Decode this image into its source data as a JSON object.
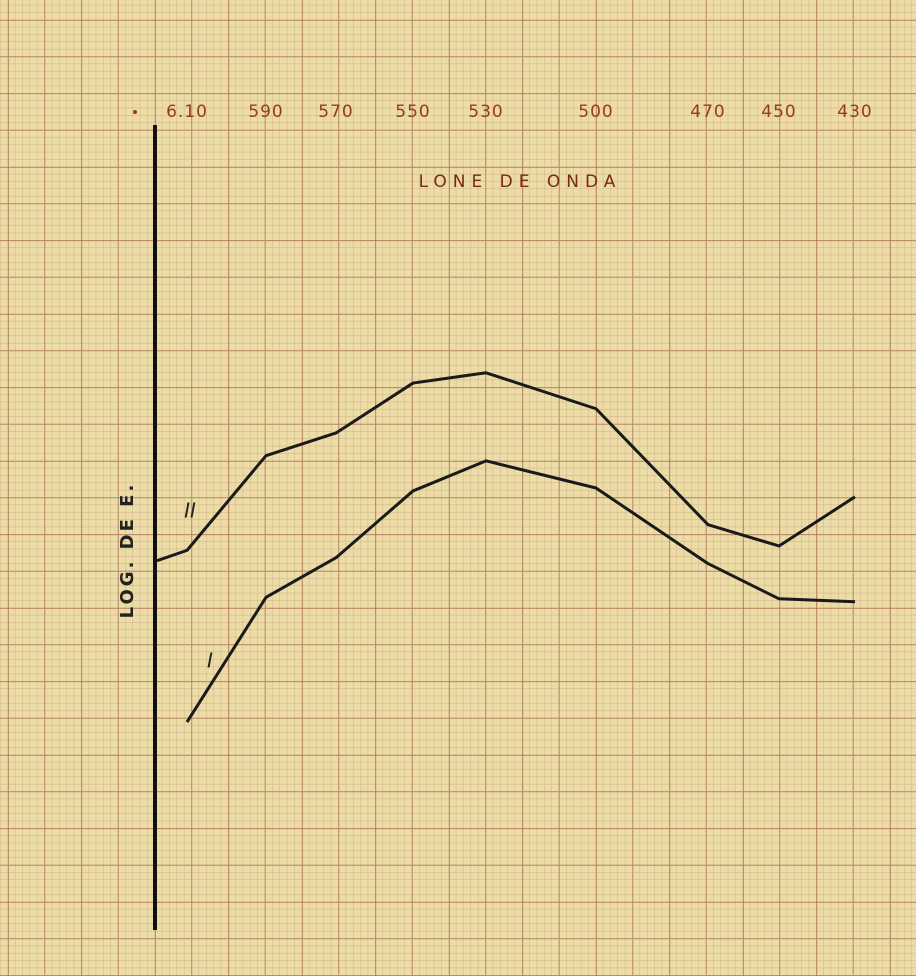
{
  "chart_data": {
    "type": "line",
    "title": "LONE DE ONDA",
    "y_label": "LOG. DE E.",
    "categories": [
      null,
      "6.10",
      "590",
      "570",
      "550",
      "530",
      "500",
      "470",
      "450",
      "430"
    ],
    "series": [
      {
        "name": "II",
        "color": "#1a1a1a",
        "values": [
          5.66,
          5.8,
          7.09,
          7.4,
          8.08,
          8.22,
          7.73,
          6.15,
          5.86,
          6.53
        ]
      },
      {
        "name": "I",
        "color": "#1a1a1a",
        "values": [
          null,
          3.46,
          5.16,
          5.7,
          6.61,
          7.02,
          6.65,
          5.62,
          5.14,
          5.1
        ]
      }
    ],
    "ylim": [
      0,
      13.3
    ],
    "grid": true
  }
}
